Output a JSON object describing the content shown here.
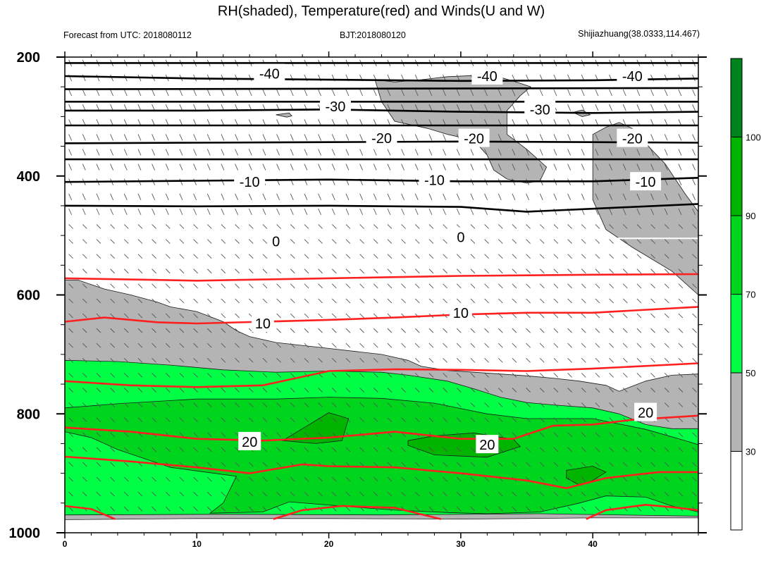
{
  "chart_data": {
    "type": "time-height cross-section",
    "title": "RH(shaded), Temperature(red) and Winds(U and W)",
    "forecast_label": "Forecast from UTC: 2018080112",
    "bjt_label": "BJT:2018080120",
    "station_label": "Shijiazhuang(38.0333,114.467)",
    "x_ticks": [
      0,
      10,
      20,
      30,
      40
    ],
    "xlim": [
      0,
      48
    ],
    "y_ticks": [
      200,
      400,
      600,
      800,
      1000
    ],
    "ylim": [
      1000,
      200
    ],
    "y_reversed": true,
    "colorbar": {
      "ticks": [
        30,
        50,
        70,
        90,
        100
      ],
      "colors": [
        "#ffffff",
        "#b4b4b4",
        "#00ff44",
        "#00d51e",
        "#00b400",
        "#00821c"
      ]
    },
    "rh_regions": [
      {
        "level": 30,
        "color": "#b4b4b4",
        "points": [
          [
            0,
            575
          ],
          [
            1,
            575
          ],
          [
            3,
            590
          ],
          [
            5,
            600
          ],
          [
            7,
            612
          ],
          [
            8,
            620
          ],
          [
            10,
            628
          ],
          [
            12,
            645
          ],
          [
            13,
            660
          ],
          [
            14,
            670
          ],
          [
            16,
            680
          ],
          [
            20,
            690
          ],
          [
            24,
            700
          ],
          [
            26,
            710
          ],
          [
            27,
            720
          ],
          [
            29,
            727
          ],
          [
            33,
            733
          ],
          [
            35,
            736
          ],
          [
            37,
            740
          ],
          [
            39,
            745
          ],
          [
            41,
            752
          ],
          [
            42,
            762
          ],
          [
            44,
            745
          ],
          [
            46,
            735
          ],
          [
            48,
            733
          ],
          [
            48,
            975
          ],
          [
            40,
            975
          ],
          [
            30,
            977
          ],
          [
            20,
            976
          ],
          [
            10,
            976
          ],
          [
            0,
            978
          ]
        ]
      },
      {
        "level": 30,
        "color": "#b4b4b4",
        "points": [
          [
            23.5,
            238
          ],
          [
            25,
            242
          ],
          [
            27,
            238
          ],
          [
            29,
            233
          ],
          [
            31,
            231
          ],
          [
            33,
            234
          ],
          [
            34.5,
            244
          ],
          [
            35.3,
            250
          ],
          [
            34.5,
            265
          ],
          [
            33.5,
            290
          ],
          [
            33.5,
            330
          ],
          [
            35,
            355
          ],
          [
            36.5,
            385
          ],
          [
            36,
            408
          ],
          [
            35,
            412
          ],
          [
            33.5,
            405
          ],
          [
            32.5,
            390
          ],
          [
            32,
            365
          ],
          [
            31,
            340
          ],
          [
            29,
            330
          ],
          [
            27.5,
            320
          ],
          [
            25,
            308
          ],
          [
            24,
            275
          ]
        ]
      },
      {
        "level": 30,
        "color": "#b4b4b4",
        "points": [
          [
            40,
            330
          ],
          [
            41,
            318
          ],
          [
            42,
            310
          ],
          [
            43,
            320
          ],
          [
            44,
            345
          ],
          [
            45.5,
            380
          ],
          [
            47,
            430
          ],
          [
            48,
            460
          ],
          [
            48,
            600
          ],
          [
            46,
            560
          ],
          [
            43,
            520
          ],
          [
            41,
            490
          ],
          [
            40,
            440
          ]
        ]
      },
      {
        "level": 30,
        "color": "#b4b4b4",
        "points": [
          [
            16,
            297
          ],
          [
            17,
            294
          ],
          [
            17.2,
            299
          ],
          [
            16.8,
            301
          ]
        ]
      },
      {
        "level": 30,
        "color": "#b4b4b4",
        "points": [
          [
            38.5,
            293
          ],
          [
            39.2,
            289
          ],
          [
            39.8,
            297
          ],
          [
            39.2,
            300
          ]
        ]
      },
      {
        "level": 50,
        "color": "#00ff44",
        "points": [
          [
            0,
            710
          ],
          [
            4,
            712
          ],
          [
            8,
            718
          ],
          [
            12,
            726
          ],
          [
            16,
            730
          ],
          [
            20,
            728
          ],
          [
            24,
            730
          ],
          [
            26,
            735
          ],
          [
            29,
            745
          ],
          [
            31,
            758
          ],
          [
            33,
            772
          ],
          [
            35,
            781
          ],
          [
            37,
            785
          ],
          [
            40,
            790
          ],
          [
            42,
            800
          ],
          [
            44,
            818
          ],
          [
            46,
            825
          ],
          [
            48,
            825
          ],
          [
            48,
            972
          ],
          [
            36,
            968
          ],
          [
            24,
            970
          ],
          [
            12,
            969
          ],
          [
            0,
            970
          ]
        ]
      },
      {
        "level": 70,
        "color": "#00d51e",
        "points": [
          [
            0,
            790
          ],
          [
            4,
            783
          ],
          [
            10,
            775
          ],
          [
            16,
            775
          ],
          [
            20,
            772
          ],
          [
            24,
            774
          ],
          [
            28,
            782
          ],
          [
            32,
            800
          ],
          [
            35,
            808
          ],
          [
            40,
            808
          ],
          [
            44,
            826
          ],
          [
            47,
            845
          ],
          [
            48,
            852
          ],
          [
            48,
            965
          ],
          [
            46,
            955
          ],
          [
            44,
            940
          ],
          [
            41,
            938
          ],
          [
            39,
            950
          ],
          [
            36,
            965
          ],
          [
            32,
            968
          ],
          [
            29,
            966
          ],
          [
            25,
            962
          ],
          [
            22,
            957
          ],
          [
            17,
            948
          ],
          [
            15,
            965
          ],
          [
            11,
            967
          ],
          [
            12,
            950
          ],
          [
            13,
            905
          ],
          [
            8,
            890
          ],
          [
            4,
            860
          ],
          [
            2,
            840
          ],
          [
            0,
            830
          ]
        ]
      },
      {
        "level": 90,
        "color": "#00b400",
        "points": [
          [
            16.5,
            845
          ],
          [
            18,
            825
          ],
          [
            20,
            798
          ],
          [
            21.5,
            808
          ],
          [
            21,
            845
          ],
          [
            19,
            850
          ]
        ]
      },
      {
        "level": 90,
        "color": "#00b400",
        "points": [
          [
            26,
            845
          ],
          [
            28,
            837
          ],
          [
            31,
            832
          ],
          [
            34,
            843
          ],
          [
            34.5,
            855
          ],
          [
            32,
            873
          ],
          [
            28,
            869
          ],
          [
            26,
            853
          ]
        ]
      },
      {
        "level": 90,
        "color": "#00b400",
        "points": [
          [
            38,
            895
          ],
          [
            40,
            888
          ],
          [
            41,
            898
          ],
          [
            40,
            912
          ],
          [
            39,
            920
          ],
          [
            38,
            908
          ]
        ]
      }
    ],
    "temperature_contours": [
      {
        "value": -40,
        "labels": [
          "-40",
          "-40",
          "-40"
        ],
        "lines": [
          [
            [
              0,
              210
            ],
            [
              48,
              210
            ]
          ],
          [
            [
              0,
              232
            ],
            [
              10,
              236
            ],
            [
              20,
              238
            ],
            [
              30,
              240
            ],
            [
              40,
              239
            ],
            [
              48,
              236
            ]
          ],
          [
            [
              0,
              254
            ],
            [
              48,
              252
            ]
          ]
        ]
      },
      {
        "value": -30,
        "labels": [
          "-30",
          "-30"
        ],
        "lines": [
          [
            [
              0,
              275
            ],
            [
              48,
              275
            ]
          ],
          [
            [
              0,
              290
            ],
            [
              10,
              290
            ],
            [
              20,
              288
            ],
            [
              30,
              292
            ],
            [
              40,
              294
            ],
            [
              48,
              292
            ]
          ],
          [
            [
              0,
              315
            ],
            [
              48,
              315
            ]
          ]
        ]
      },
      {
        "value": -20,
        "labels": [
          "-20",
          "-20",
          "-20"
        ],
        "lines": [
          [
            [
              0,
              345
            ],
            [
              10,
              344
            ],
            [
              20,
              343
            ],
            [
              30,
              342
            ],
            [
              40,
              343
            ],
            [
              48,
              344
            ]
          ],
          [
            [
              0,
              372
            ],
            [
              48,
              372
            ]
          ]
        ]
      },
      {
        "value": -10,
        "labels": [
          "-10",
          "-10",
          "-10"
        ],
        "lines": [
          [
            [
              0,
              410
            ],
            [
              10,
              408
            ],
            [
              20,
              406
            ],
            [
              30,
              409
            ],
            [
              40,
              409
            ],
            [
              48,
              403
            ]
          ],
          [
            [
              0,
              450
            ],
            [
              10,
              451
            ],
            [
              20,
              450
            ],
            [
              30,
              452
            ],
            [
              35,
              460
            ],
            [
              40,
              455
            ],
            [
              48,
              447
            ]
          ]
        ]
      },
      {
        "value": 0,
        "labels": [
          "0",
          "0"
        ],
        "lines": [
          [
            [
              0,
              505
            ],
            [
              48,
              505
            ]
          ]
        ]
      },
      {
        "value": 10,
        "labels": [
          "10",
          "10"
        ],
        "lines": [
          [
            [
              0,
              572
            ],
            [
              5,
              574
            ],
            [
              10,
              576
            ],
            [
              15,
              574
            ],
            [
              20,
              572
            ],
            [
              30,
              568
            ],
            [
              35,
              567
            ],
            [
              40,
              566
            ],
            [
              48,
              565
            ]
          ],
          [
            [
              0,
              645
            ],
            [
              3,
              638
            ],
            [
              7,
              646
            ],
            [
              10,
              648
            ],
            [
              15,
              645
            ],
            [
              20,
              642
            ],
            [
              25,
              638
            ],
            [
              30,
              633
            ],
            [
              35,
              630
            ],
            [
              40,
              630
            ],
            [
              48,
              620
            ]
          ]
        ]
      },
      {
        "value": 20,
        "labels": [
          "20",
          "20",
          "20"
        ],
        "lines": [
          [
            [
              0,
              745
            ],
            [
              5,
              752
            ],
            [
              10,
              755
            ],
            [
              15,
              752
            ],
            [
              20,
              728
            ],
            [
              25,
              725
            ],
            [
              30,
              726
            ],
            [
              35,
              728
            ],
            [
              40,
              724
            ],
            [
              48,
              715
            ]
          ],
          [
            [
              0,
              823
            ],
            [
              5,
              830
            ],
            [
              10,
              842
            ],
            [
              15,
              845
            ],
            [
              20,
              840
            ],
            [
              25,
              830
            ],
            [
              30,
              842
            ],
            [
              34,
              842
            ],
            [
              37,
              820
            ],
            [
              40,
              818
            ],
            [
              43,
              810
            ],
            [
              48,
              803
            ]
          ],
          [
            [
              0,
              872
            ],
            [
              5,
              880
            ],
            [
              10,
              890
            ],
            [
              14,
              900
            ],
            [
              18,
              885
            ],
            [
              20,
              888
            ],
            [
              25,
              890
            ],
            [
              30,
              900
            ],
            [
              35,
              912
            ],
            [
              38,
              925
            ],
            [
              41,
              908
            ],
            [
              45,
              898
            ],
            [
              48,
              898
            ]
          ],
          [
            [
              0,
              955
            ],
            [
              2,
              960
            ],
            [
              3.8,
              977
            ]
          ],
          [
            [
              15.8,
              977
            ],
            [
              18,
              962
            ],
            [
              21,
              955
            ],
            [
              25,
              958
            ],
            [
              28.5,
              977
            ]
          ],
          [
            [
              39.5,
              977
            ],
            [
              41,
              962
            ],
            [
              44,
              953
            ],
            [
              46,
              957
            ],
            [
              48,
              962
            ]
          ]
        ]
      }
    ],
    "temperature_line_colors": {
      "cold": "#000000",
      "warm": "#ff1f1f",
      "zero": "#ffffff"
    }
  }
}
